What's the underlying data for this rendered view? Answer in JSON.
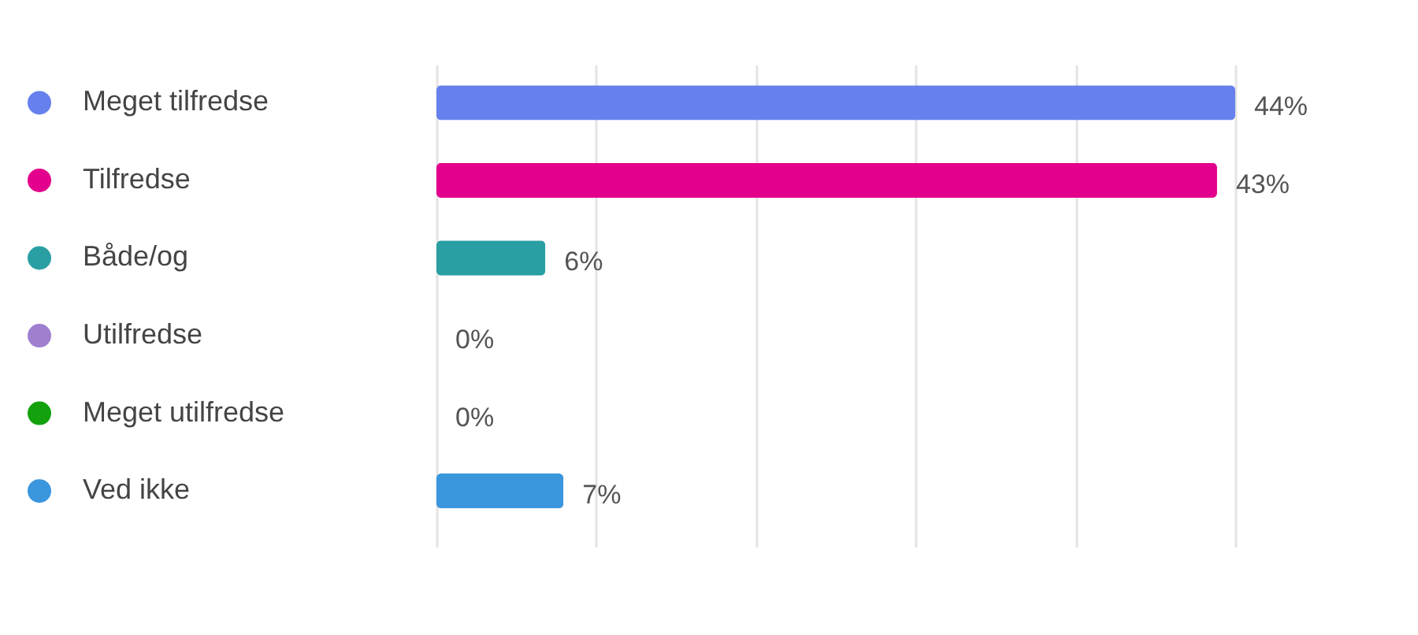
{
  "chart_data": {
    "type": "bar",
    "orientation": "horizontal",
    "categories": [
      "Meget tilfredse",
      "Tilfredse",
      "Både/og",
      "Utilfredse",
      "Meget utilfredse",
      "Ved ikke"
    ],
    "values": [
      44,
      43,
      6,
      0,
      0,
      7
    ],
    "value_labels": [
      "44%",
      "43%",
      "6%",
      "0%",
      "0%",
      "7%"
    ],
    "colors": [
      "#6680ee",
      "#e3008c",
      "#2a9fa3",
      "#9f80cf",
      "#13a10e",
      "#3a96dd"
    ],
    "xlim": [
      0,
      44
    ],
    "xticks": [
      {
        "value": 0,
        "label": null
      },
      {
        "value": 8.8,
        "label": null
      },
      {
        "value": 17.6,
        "label": null
      },
      {
        "value": 26.4,
        "label": null
      },
      {
        "value": 35.2,
        "label": null
      },
      {
        "value": 44,
        "label": null
      }
    ],
    "grid": "x",
    "tick_labels": "y"
  }
}
